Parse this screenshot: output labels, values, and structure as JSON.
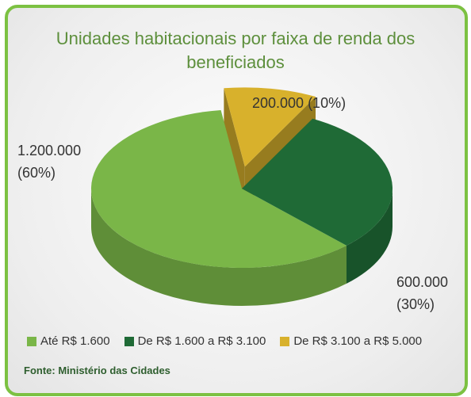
{
  "chart_data": {
    "type": "pie3d",
    "title": "Unidades habitacionais por faixa de renda dos beneficiados",
    "categories": [
      "Até R$ 1.600",
      "De R$ 1.600 a R$ 3.100",
      "De R$ 3.100 a R$ 5.000"
    ],
    "values": [
      1200000,
      600000,
      200000
    ],
    "value_labels": [
      "1.200.000 (60%)",
      "600.000 (30%)",
      "200.000 (10%)"
    ],
    "colors": [
      "#7ab648",
      "#1f6a36",
      "#d8b12c"
    ],
    "exploded": [
      false,
      false,
      true
    ],
    "legend": "bottom",
    "source": "Fonte: Ministério das Cidades"
  }
}
